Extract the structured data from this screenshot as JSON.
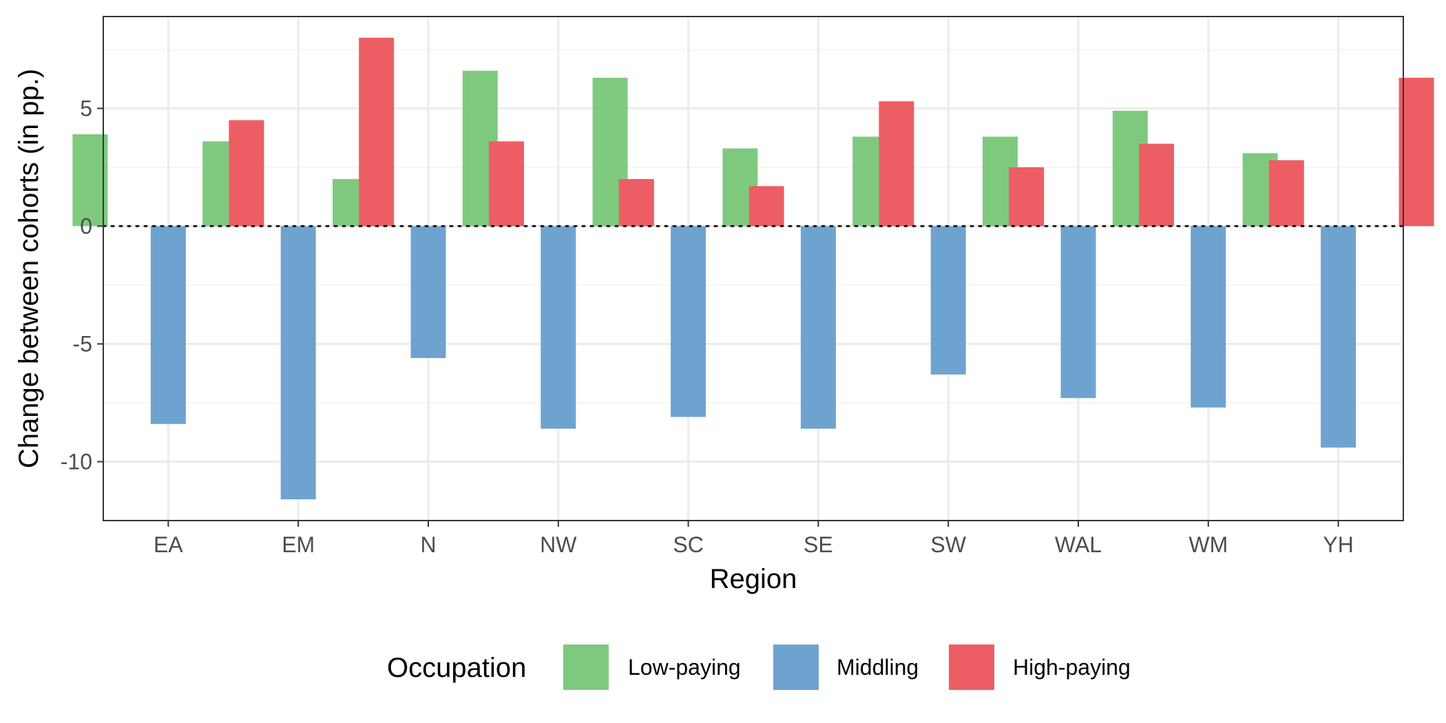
{
  "chart_data": {
    "type": "bar",
    "xlabel": "Region",
    "ylabel": "Change between cohorts (in pp.)",
    "categories": [
      "EA",
      "EM",
      "N",
      "NW",
      "SC",
      "SE",
      "SW",
      "WAL",
      "WM",
      "YH"
    ],
    "series": [
      {
        "name": "Low-paying",
        "color": "#7fc97f",
        "values": [
          3.9,
          3.6,
          2.0,
          6.6,
          6.3,
          3.3,
          3.8,
          3.8,
          4.9,
          3.1
        ]
      },
      {
        "name": "Middling",
        "color": "#6fa3cf",
        "values": [
          -8.4,
          -11.6,
          -5.6,
          -8.6,
          -8.1,
          -8.6,
          -6.3,
          -7.3,
          -7.7,
          -9.4
        ]
      },
      {
        "name": "High-paying",
        "color": "#ec5e64",
        "values": [
          4.5,
          8.0,
          3.6,
          2.0,
          1.7,
          5.3,
          2.5,
          3.5,
          2.8,
          6.3
        ]
      }
    ],
    "ylim": [
      -12.5,
      8.9
    ],
    "yticks": [
      -10,
      -5,
      0,
      5
    ],
    "ytick_labels": [
      "-10",
      "-5",
      "0",
      "5"
    ],
    "reference_line": {
      "y": 0,
      "style": "dotted"
    },
    "grid": true,
    "legend": {
      "title": "Occupation",
      "position": "bottom"
    }
  }
}
